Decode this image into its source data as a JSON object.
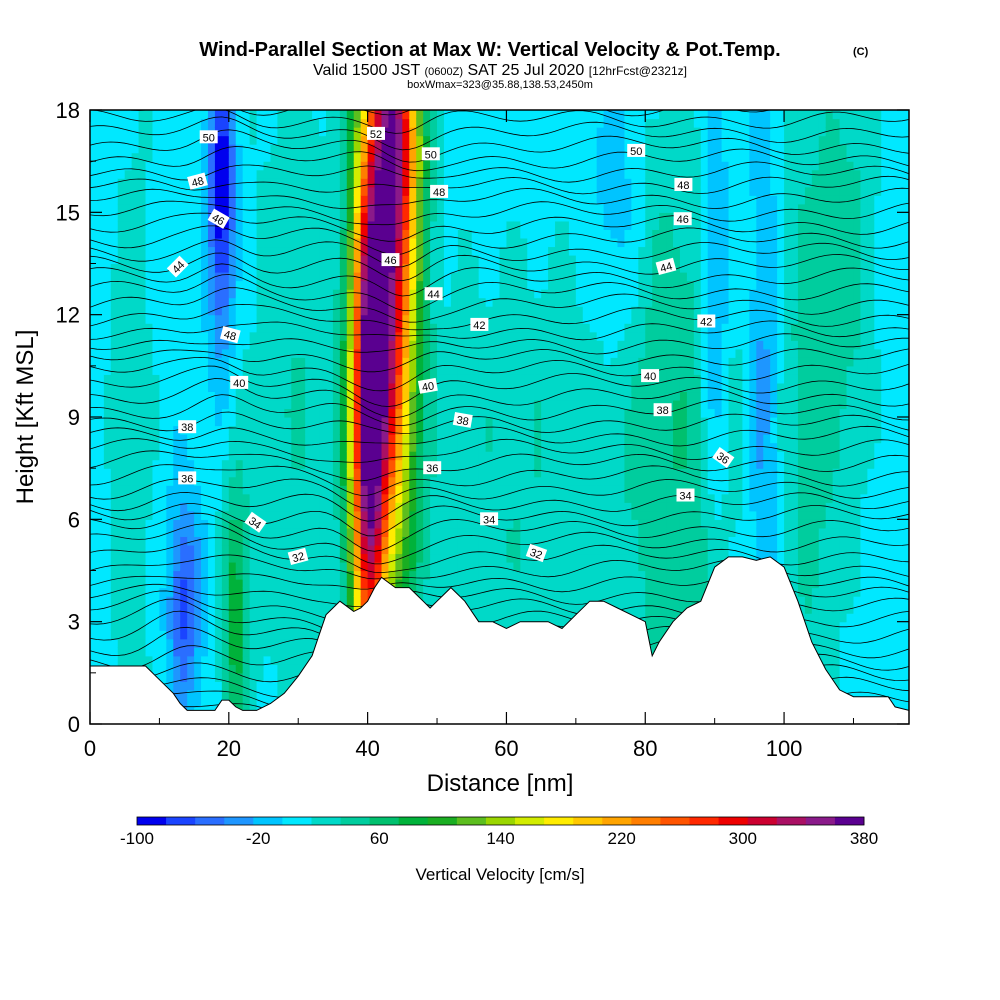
{
  "header": {
    "title": "Wind-Parallel Section at Max W: Vertical Velocity & Pot.Temp.",
    "title_mark": "(C)",
    "subtitle_valid": "Valid 1500 JST",
    "subtitle_utc": "(0600Z)",
    "subtitle_date": "SAT 25 Jul 2020",
    "subtitle_fcst": "[12hrFcst@2321z]",
    "subtitle_box": "boxWmax=323@35.88,138.53,2450m"
  },
  "chart_data": {
    "type": "heatmap",
    "xlabel": "Distance [nm]",
    "ylabel": "Height [Kft MSL]",
    "xlim": [
      0,
      118
    ],
    "ylim": [
      0,
      18
    ],
    "xticks": [
      "0",
      "20",
      "40",
      "60",
      "80",
      "100"
    ],
    "yticks": [
      "0",
      "3",
      "6",
      "9",
      "12",
      "15",
      "18"
    ],
    "fill_variable": "Vertical Velocity",
    "contour_variable": "Pot.Temp.",
    "colorbar": {
      "title": "Vertical Velocity [cm/s]",
      "labels": [
        "-100",
        "-20",
        "60",
        "140",
        "220",
        "300",
        "380"
      ],
      "min": -100,
      "max": 380,
      "step": 20,
      "colors": [
        "#0000ee",
        "#1a44ff",
        "#2a6eff",
        "#1e96ff",
        "#00c4ff",
        "#00e8ff",
        "#00d9c8",
        "#00cd9e",
        "#00c06e",
        "#00b23a",
        "#1aae22",
        "#5cbe1e",
        "#9ad600",
        "#d2ec00",
        "#ffec00",
        "#ffc800",
        "#ffa400",
        "#ff7e00",
        "#ff5400",
        "#ff2800",
        "#ee0000",
        "#cc0030",
        "#aa1064",
        "#8a1a8a",
        "#5a0090"
      ]
    },
    "terrain": [
      [
        0,
        1.7
      ],
      [
        4,
        1.7
      ],
      [
        8,
        1.7
      ],
      [
        10,
        1.3
      ],
      [
        12,
        0.9
      ],
      [
        13,
        0.6
      ],
      [
        14,
        0.4
      ],
      [
        16,
        0.4
      ],
      [
        18,
        0.4
      ],
      [
        19,
        0.7
      ],
      [
        20,
        0.7
      ],
      [
        21,
        0.5
      ],
      [
        22,
        0.4
      ],
      [
        24,
        0.4
      ],
      [
        26,
        0.6
      ],
      [
        28,
        0.9
      ],
      [
        30,
        1.4
      ],
      [
        32,
        2.0
      ],
      [
        33,
        2.6
      ],
      [
        34,
        3.2
      ],
      [
        35,
        3.4
      ],
      [
        36,
        3.6
      ],
      [
        38,
        3.3
      ],
      [
        39,
        3.4
      ],
      [
        40,
        3.6
      ],
      [
        41,
        4.0
      ],
      [
        42,
        4.3
      ],
      [
        44,
        4.0
      ],
      [
        46,
        4.0
      ],
      [
        47,
        3.8
      ],
      [
        48,
        3.6
      ],
      [
        49,
        3.4
      ],
      [
        50,
        3.6
      ],
      [
        51,
        3.8
      ],
      [
        52,
        4.0
      ],
      [
        54,
        3.6
      ],
      [
        56,
        3.0
      ],
      [
        58,
        3.0
      ],
      [
        60,
        2.8
      ],
      [
        62,
        3.0
      ],
      [
        64,
        3.0
      ],
      [
        66,
        3.0
      ],
      [
        68,
        2.8
      ],
      [
        70,
        3.2
      ],
      [
        72,
        3.6
      ],
      [
        74,
        3.6
      ],
      [
        76,
        3.4
      ],
      [
        78,
        3.2
      ],
      [
        80,
        3.0
      ],
      [
        81,
        2.0
      ],
      [
        82,
        2.4
      ],
      [
        84,
        3.0
      ],
      [
        86,
        3.4
      ],
      [
        88,
        3.6
      ],
      [
        90,
        4.6
      ],
      [
        92,
        4.9
      ],
      [
        94,
        4.9
      ],
      [
        96,
        4.8
      ],
      [
        98,
        4.9
      ],
      [
        100,
        4.6
      ],
      [
        102,
        3.6
      ],
      [
        104,
        2.4
      ],
      [
        106,
        1.6
      ],
      [
        108,
        1.0
      ],
      [
        110,
        0.8
      ],
      [
        112,
        0.8
      ],
      [
        115,
        0.8
      ],
      [
        116,
        0.5
      ],
      [
        118,
        0.4
      ]
    ],
    "updrafts": [
      {
        "x": 43,
        "y": 14,
        "sx": 2.8,
        "sy": 6.5,
        "amp": 340
      },
      {
        "x": 40,
        "y": 8,
        "sx": 1.8,
        "sy": 5.5,
        "amp": 290
      },
      {
        "x": 45,
        "y": 17.5,
        "sx": 2.2,
        "sy": 2.2,
        "amp": 100
      },
      {
        "x": 21,
        "y": 3,
        "sx": 1.4,
        "sy": 3.2,
        "amp": 80
      },
      {
        "x": 85,
        "y": 8,
        "sx": 6,
        "sy": 8,
        "amp": 45
      },
      {
        "x": 104,
        "y": 10,
        "sx": 3,
        "sy": 7,
        "amp": 45
      },
      {
        "x": 110,
        "y": 14,
        "sx": 2.5,
        "sy": 5,
        "amp": 35
      },
      {
        "x": 62,
        "y": 7,
        "sx": 12,
        "sy": 5,
        "amp": 30
      },
      {
        "x": 30,
        "y": 10,
        "sx": 5,
        "sy": 8,
        "amp": 30
      },
      {
        "x": 6,
        "y": 8,
        "sx": 2.5,
        "sy": 8,
        "amp": 25
      }
    ],
    "downdrafts": [
      {
        "x": 19,
        "y": 15.5,
        "sx": 1.3,
        "sy": 3,
        "amp": -110
      },
      {
        "x": 13.5,
        "y": 3.5,
        "sx": 1.6,
        "sy": 2.2,
        "amp": -75
      },
      {
        "x": 90,
        "y": 13,
        "sx": 1.4,
        "sy": 5,
        "amp": -55
      },
      {
        "x": 97,
        "y": 10,
        "sx": 1.5,
        "sy": 6,
        "amp": -40
      },
      {
        "x": 76,
        "y": 15,
        "sx": 2.5,
        "sy": 3,
        "amp": -30
      }
    ],
    "background_w": 8,
    "theta_contours": {
      "base": 29,
      "step": 0.5,
      "count": 47,
      "bumps": [
        {
          "x": 40,
          "y": 5,
          "sx": 3,
          "sy": 4,
          "amp": -0.5
        },
        {
          "x": 45,
          "y": 13,
          "sx": 3,
          "sy": 4,
          "amp": -0.4
        },
        {
          "x": 19,
          "y": 12,
          "sx": 3,
          "sy": 5,
          "amp": 0.3
        },
        {
          "x": 13,
          "y": 3,
          "sx": 4,
          "sy": 3,
          "amp": 0.4
        }
      ]
    },
    "contour_labels": [
      {
        "text": "50",
        "x": 17.1,
        "y": 17.2,
        "rot": 0
      },
      {
        "text": "52",
        "x": 41.2,
        "y": 17.3,
        "rot": 0
      },
      {
        "text": "50",
        "x": 49.1,
        "y": 16.7,
        "rot": 0
      },
      {
        "text": "50",
        "x": 78.7,
        "y": 16.8,
        "rot": 0
      },
      {
        "text": "48",
        "x": 15.5,
        "y": 15.9,
        "rot": -15
      },
      {
        "text": "48",
        "x": 50.3,
        "y": 15.6,
        "rot": 0
      },
      {
        "text": "48",
        "x": 85.5,
        "y": 15.8,
        "rot": 0
      },
      {
        "text": "46",
        "x": 18.5,
        "y": 14.8,
        "rot": 30
      },
      {
        "text": "46",
        "x": 43.3,
        "y": 13.6,
        "rot": 0
      },
      {
        "text": "46",
        "x": 85.4,
        "y": 14.8,
        "rot": 0
      },
      {
        "text": "44",
        "x": 12.7,
        "y": 13.4,
        "rot": -45
      },
      {
        "text": "44",
        "x": 49.5,
        "y": 12.6,
        "rot": 0
      },
      {
        "text": "44",
        "x": 83.0,
        "y": 13.4,
        "rot": -15
      },
      {
        "text": "42",
        "x": 56.1,
        "y": 11.7,
        "rot": 0
      },
      {
        "text": "42",
        "x": 88.8,
        "y": 11.8,
        "rot": 0
      },
      {
        "text": "48",
        "x": 20.2,
        "y": 11.4,
        "rot": 15
      },
      {
        "text": "40",
        "x": 21.5,
        "y": 10.0,
        "rot": 0
      },
      {
        "text": "40",
        "x": 48.7,
        "y": 9.9,
        "rot": -10
      },
      {
        "text": "40",
        "x": 80.7,
        "y": 10.2,
        "rot": 0
      },
      {
        "text": "38",
        "x": 14.0,
        "y": 8.7,
        "rot": 0
      },
      {
        "text": "38",
        "x": 53.7,
        "y": 8.9,
        "rot": 10
      },
      {
        "text": "38",
        "x": 82.5,
        "y": 9.2,
        "rot": 0
      },
      {
        "text": "36",
        "x": 91.2,
        "y": 7.8,
        "rot": 35
      },
      {
        "text": "36",
        "x": 14.0,
        "y": 7.2,
        "rot": 0
      },
      {
        "text": "36",
        "x": 49.3,
        "y": 7.5,
        "rot": 0
      },
      {
        "text": "34",
        "x": 85.8,
        "y": 6.7,
        "rot": 0
      },
      {
        "text": "34",
        "x": 57.5,
        "y": 6.0,
        "rot": 0
      },
      {
        "text": "34",
        "x": 23.8,
        "y": 5.9,
        "rot": 35
      },
      {
        "text": "32",
        "x": 30.0,
        "y": 4.9,
        "rot": -15
      },
      {
        "text": "32",
        "x": 64.3,
        "y": 5.0,
        "rot": 20
      }
    ]
  }
}
